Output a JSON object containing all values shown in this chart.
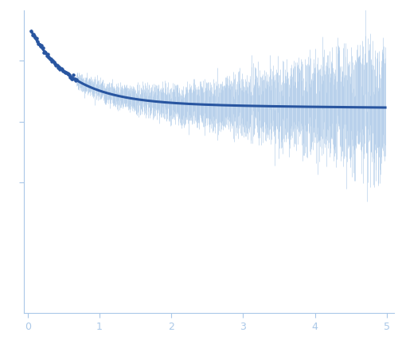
{
  "title": "",
  "xlabel": "",
  "ylabel": "",
  "xlim": [
    -0.05,
    5.1
  ],
  "ylim": [
    -0.45,
    1.05
  ],
  "x_ticks": [
    0,
    1,
    2,
    3,
    4,
    5
  ],
  "background_color": "#ffffff",
  "curve_color": "#2855a0",
  "error_color": "#aac8e8",
  "scatter_color": "#2855a0",
  "axis_color": "#aac8e8",
  "tick_label_color": "#99aacc",
  "smooth_lw": 2.2,
  "error_lw": 0.55,
  "scatter_s": 5,
  "n_low_q_points": 45,
  "n_high_q_points": 700
}
